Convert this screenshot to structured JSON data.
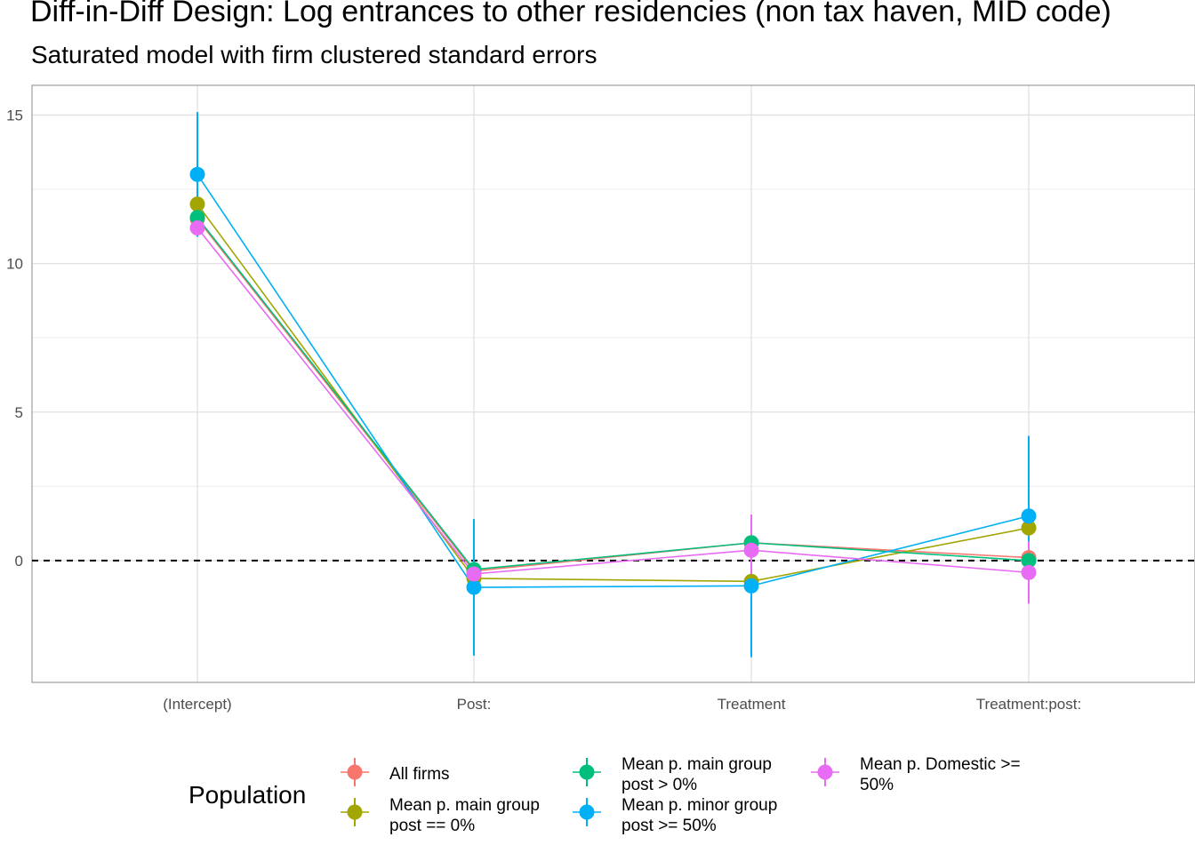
{
  "chart_data": {
    "type": "line",
    "title": "Diff-in-Diff Design: Log entrances to other residencies (non tax haven, MID code)",
    "subtitle": "Saturated model with firm clustered standard errors",
    "xlabel": "",
    "ylabel": "",
    "categories": [
      "(Intercept)",
      "Post:",
      "Treatment",
      "Treatment:post:"
    ],
    "ylim": [
      -4.1,
      16.0
    ],
    "yticks": [
      0,
      5,
      10,
      15
    ],
    "grid": true,
    "reference_line": {
      "y": 0,
      "style": "dashed"
    },
    "legend": {
      "title": "Population",
      "placement": "bottom"
    },
    "series": [
      {
        "name": "All firms",
        "color": "#F8766D",
        "values": [
          11.5,
          -0.35,
          0.6,
          0.1
        ],
        "lower": [
          11.2,
          -0.5,
          0.45,
          -0.05
        ],
        "upper": [
          11.8,
          -0.2,
          0.75,
          0.25
        ]
      },
      {
        "name": "Mean p. main group post == 0%",
        "color": "#A3A500",
        "values": [
          12.0,
          -0.6,
          -0.7,
          1.1
        ],
        "lower": [
          11.7,
          -0.75,
          -0.85,
          0.95
        ],
        "upper": [
          12.3,
          -0.45,
          -0.55,
          1.25
        ]
      },
      {
        "name": "Mean p. main group post > 0%",
        "color": "#00BF7D",
        "values": [
          11.55,
          -0.3,
          0.6,
          0.0
        ],
        "lower": [
          11.25,
          -0.45,
          0.45,
          -0.15
        ],
        "upper": [
          11.85,
          -0.15,
          0.75,
          0.15
        ]
      },
      {
        "name": "Mean p. minor group post >= 50%",
        "color": "#00B0F6",
        "values": [
          13.0,
          -0.9,
          -0.85,
          1.5
        ],
        "lower": [
          10.9,
          -3.2,
          -3.25,
          -1.2
        ],
        "upper": [
          15.1,
          1.4,
          1.5,
          4.2
        ]
      },
      {
        "name": "Mean p. Domestic >= 50%",
        "color": "#E76BF3",
        "values": [
          11.2,
          -0.45,
          0.35,
          -0.4
        ],
        "lower": [
          10.95,
          -0.75,
          -0.8,
          -1.45
        ],
        "upper": [
          11.45,
          -0.15,
          1.55,
          0.65
        ]
      }
    ]
  }
}
